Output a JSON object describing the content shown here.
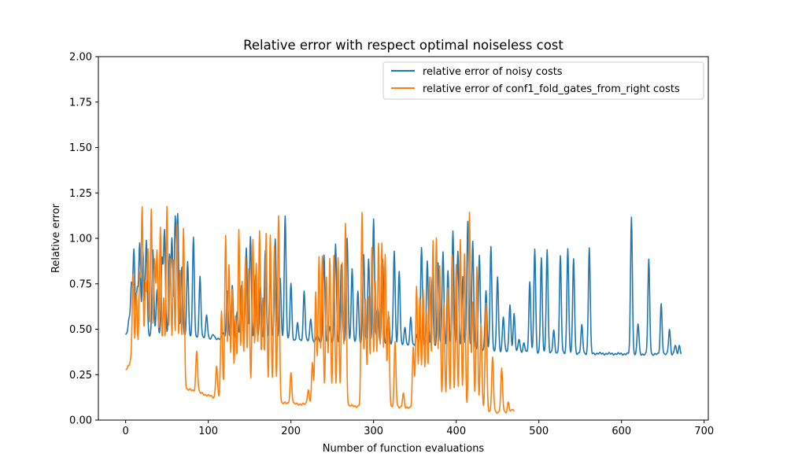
{
  "chart_data": {
    "type": "line",
    "title": "Relative error with respect optimal noiseless cost",
    "xlabel": "Number of function evaluations",
    "ylabel": "Relative error",
    "xlim": [
      -33,
      705
    ],
    "ylim": [
      0,
      2
    ],
    "xticks": [
      0,
      100,
      200,
      300,
      400,
      500,
      600,
      700
    ],
    "yticks": [
      0.0,
      0.25,
      0.5,
      0.75,
      1.0,
      1.25,
      1.5,
      1.75,
      2.0
    ],
    "ytick_labels": [
      "0.00",
      "0.25",
      "0.50",
      "0.75",
      "1.00",
      "1.25",
      "1.50",
      "1.75",
      "2.00"
    ],
    "grid": false,
    "legend_position": "top-right",
    "series": [
      {
        "name": "relative error of noisy costs",
        "color": "#1f77b4",
        "baseline": [
          [
            0,
            0.47
          ],
          [
            60,
            0.46
          ],
          [
            100,
            0.45
          ],
          [
            200,
            0.44
          ],
          [
            300,
            0.42
          ],
          [
            400,
            0.4
          ],
          [
            450,
            0.38
          ],
          [
            500,
            0.37
          ],
          [
            672,
            0.36
          ]
        ],
        "spikes": [
          [
            4,
            0.55
          ],
          [
            7,
            0.75
          ],
          [
            10,
            0.94
          ],
          [
            14,
            0.72
          ],
          [
            17,
            0.97
          ],
          [
            21,
            0.93
          ],
          [
            25,
            0.99
          ],
          [
            33,
            0.94
          ],
          [
            38,
            0.71
          ],
          [
            44,
            0.89
          ],
          [
            47,
            1.04
          ],
          [
            53,
            0.9
          ],
          [
            56,
            0.99
          ],
          [
            60,
            1.1
          ],
          [
            63,
            1.12
          ],
          [
            68,
            0.84
          ],
          [
            75,
            0.87
          ],
          [
            82,
            1.0
          ],
          [
            90,
            0.79
          ],
          [
            98,
            0.58
          ],
          [
            106,
            0.47
          ],
          [
            118,
            0.48
          ],
          [
            123,
            0.71
          ],
          [
            129,
            0.74
          ],
          [
            135,
            0.6
          ],
          [
            140,
            0.74
          ],
          [
            146,
            0.95
          ],
          [
            151,
            1.01
          ],
          [
            157,
            0.8
          ],
          [
            163,
            0.73
          ],
          [
            169,
            0.94
          ],
          [
            175,
            0.81
          ],
          [
            181,
            1.0
          ],
          [
            187,
            0.78
          ],
          [
            193,
            1.12
          ],
          [
            200,
            0.75
          ],
          [
            208,
            0.53
          ],
          [
            216,
            0.71
          ],
          [
            224,
            0.56
          ],
          [
            232,
            0.47
          ],
          [
            240,
            0.91
          ],
          [
            247,
            0.52
          ],
          [
            254,
            0.97
          ],
          [
            261,
            0.86
          ],
          [
            268,
            1.0
          ],
          [
            274,
            0.83
          ],
          [
            281,
            0.71
          ],
          [
            288,
            0.91
          ],
          [
            294,
            0.89
          ],
          [
            300,
            1.1
          ],
          [
            305,
            0.62
          ],
          [
            311,
            0.88
          ],
          [
            318,
            0.58
          ],
          [
            325,
            0.93
          ],
          [
            331,
            0.82
          ],
          [
            338,
            0.51
          ],
          [
            345,
            0.56
          ],
          [
            352,
            0.47
          ],
          [
            358,
            0.95
          ],
          [
            365,
            0.88
          ],
          [
            371,
            0.78
          ],
          [
            378,
            0.86
          ],
          [
            384,
            0.93
          ],
          [
            390,
            0.82
          ],
          [
            396,
            1.04
          ],
          [
            402,
            0.93
          ],
          [
            408,
            0.79
          ],
          [
            414,
            1.09
          ],
          [
            420,
            0.99
          ],
          [
            428,
            0.91
          ],
          [
            436,
            0.71
          ],
          [
            442,
            0.96
          ],
          [
            450,
            0.79
          ],
          [
            457,
            0.57
          ],
          [
            465,
            0.64
          ],
          [
            470,
            0.58
          ],
          [
            476,
            0.45
          ],
          [
            482,
            0.42
          ],
          [
            489,
            0.76
          ],
          [
            495,
            0.94
          ],
          [
            503,
            0.89
          ],
          [
            510,
            0.94
          ],
          [
            518,
            0.49
          ],
          [
            526,
            0.9
          ],
          [
            535,
            0.95
          ],
          [
            542,
            0.89
          ],
          [
            552,
            0.52
          ],
          [
            561,
            0.95
          ],
          [
            612,
            1.12
          ],
          [
            620,
            0.53
          ],
          [
            633,
            0.88
          ],
          [
            648,
            0.64
          ],
          [
            658,
            0.5
          ],
          [
            665,
            0.41
          ],
          [
            670,
            0.41
          ]
        ]
      },
      {
        "name": "relative error of conf1_fold_gates_from_right costs",
        "color": "#ff7f0e",
        "baseline": [
          [
            0,
            0.27
          ],
          [
            30,
            0.23
          ],
          [
            60,
            0.19
          ],
          [
            90,
            0.15
          ],
          [
            110,
            0.12
          ],
          [
            150,
            0.11
          ],
          [
            200,
            0.09
          ],
          [
            260,
            0.08
          ],
          [
            320,
            0.07
          ],
          [
            380,
            0.06
          ],
          [
            420,
            0.05
          ],
          [
            470,
            0.04
          ]
        ],
        "spikes": [
          [
            3,
            0.3
          ],
          [
            6,
            0.33
          ],
          [
            9,
            0.8
          ],
          [
            13,
            0.7
          ],
          [
            17,
            0.8
          ],
          [
            20,
            1.16
          ],
          [
            24,
            0.75
          ],
          [
            27,
            0.93
          ],
          [
            31,
            1.16
          ],
          [
            35,
            0.87
          ],
          [
            38,
            0.92
          ],
          [
            42,
            1.06
          ],
          [
            46,
            0.67
          ],
          [
            50,
            1.18
          ],
          [
            54,
            0.89
          ],
          [
            58,
            0.88
          ],
          [
            62,
            1.08
          ],
          [
            66,
            0.82
          ],
          [
            70,
            1.05
          ],
          [
            86,
            0.38
          ],
          [
            110,
            0.3
          ],
          [
            116,
            0.6
          ],
          [
            121,
            1.02
          ],
          [
            125,
            0.85
          ],
          [
            129,
            0.72
          ],
          [
            133,
            0.57
          ],
          [
            137,
            1.04
          ],
          [
            141,
            0.76
          ],
          [
            145,
            0.89
          ],
          [
            149,
            0.83
          ],
          [
            154,
            1.0
          ],
          [
            158,
            0.86
          ],
          [
            162,
            1.04
          ],
          [
            166,
            0.67
          ],
          [
            170,
            1.02
          ],
          [
            175,
            1.02
          ],
          [
            180,
            0.96
          ],
          [
            185,
            1.12
          ],
          [
            200,
            0.26
          ],
          [
            221,
            0.17
          ],
          [
            226,
            0.31
          ],
          [
            230,
            0.7
          ],
          [
            234,
            0.9
          ],
          [
            238,
            0.9
          ],
          [
            243,
            0.79
          ],
          [
            247,
            0.89
          ],
          [
            252,
            0.9
          ],
          [
            257,
            0.9
          ],
          [
            262,
            0.86
          ],
          [
            266,
            1.08
          ],
          [
            286,
            1.14
          ],
          [
            290,
            0.67
          ],
          [
            294,
            0.68
          ],
          [
            298,
            0.95
          ],
          [
            302,
            0.77
          ],
          [
            306,
            0.97
          ],
          [
            310,
            0.97
          ],
          [
            314,
            0.91
          ],
          [
            318,
            0.59
          ],
          [
            326,
            0.43
          ],
          [
            336,
            0.15
          ],
          [
            348,
            0.4
          ],
          [
            352,
            0.73
          ],
          [
            356,
            0.67
          ],
          [
            360,
            0.72
          ],
          [
            364,
            0.6
          ],
          [
            368,
            0.79
          ],
          [
            372,
            0.99
          ],
          [
            376,
            1.0
          ],
          [
            380,
            0.85
          ],
          [
            385,
            0.64
          ],
          [
            390,
            0.73
          ],
          [
            395,
            0.91
          ],
          [
            400,
            0.85
          ],
          [
            405,
            1.0
          ],
          [
            410,
            0.91
          ],
          [
            416,
            1.15
          ],
          [
            420,
            0.65
          ],
          [
            425,
            0.84
          ],
          [
            430,
            0.53
          ],
          [
            436,
            0.64
          ],
          [
            444,
            0.34
          ],
          [
            455,
            0.28
          ],
          [
            463,
            0.1
          ],
          [
            468,
            0.06
          ]
        ]
      }
    ]
  }
}
